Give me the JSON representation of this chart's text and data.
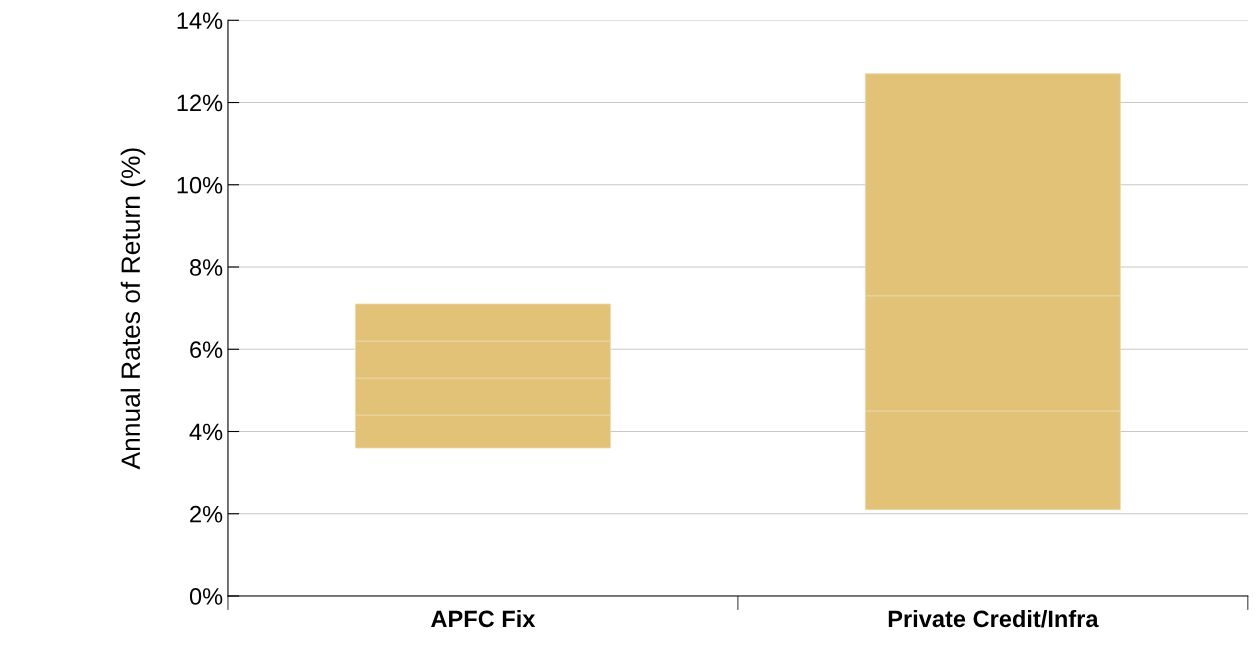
{
  "chart_data": {
    "type": "bar",
    "ylabel": "Annual Rates of Return (%)",
    "categories": [
      "APFC Fix",
      "Private Credit/Infra"
    ],
    "series": [
      {
        "color": "#e2c276",
        "base": [
          3.6,
          2.1
        ],
        "values": [
          0.8,
          2.4
        ]
      },
      {
        "color": "#e2c276",
        "base": [
          4.4,
          4.5
        ],
        "values": [
          0.9,
          2.8
        ]
      },
      {
        "color": "#e2c276",
        "base": [
          5.3,
          7.3
        ],
        "values": [
          0.9,
          5.4
        ]
      },
      {
        "color": "#e2c276",
        "base": [
          6.2,
          null
        ],
        "values": [
          0.9,
          null
        ]
      }
    ],
    "ylim": [
      0,
      14
    ],
    "yticks": [
      {
        "value": 0,
        "label": "0%"
      },
      {
        "value": 2,
        "label": "2%"
      },
      {
        "value": 4,
        "label": "4%"
      },
      {
        "value": 6,
        "label": "6%"
      },
      {
        "value": 8,
        "label": "8%"
      },
      {
        "value": 10,
        "label": "10%"
      },
      {
        "value": 12,
        "label": "12%"
      },
      {
        "value": 14,
        "label": "14%"
      }
    ],
    "grid": "y"
  }
}
